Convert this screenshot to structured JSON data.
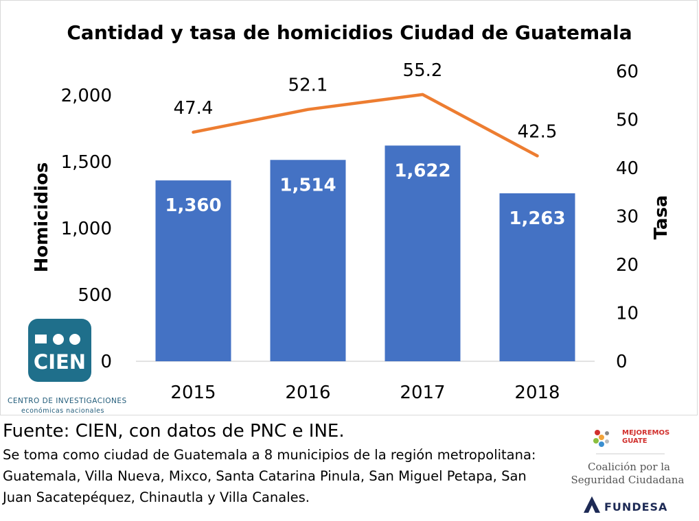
{
  "chart_data": {
    "type": "bar",
    "title": "Cantidad y tasa de homicidios Ciudad de Guatemala",
    "categories": [
      "2015",
      "2016",
      "2017",
      "2018"
    ],
    "series": [
      {
        "name": "Homicidios",
        "kind": "bar",
        "axis": "left",
        "color": "#4472c4",
        "values": [
          1360,
          1514,
          1622,
          1263
        ],
        "labels": [
          "1,360",
          "1,514",
          "1,622",
          "1,263"
        ]
      },
      {
        "name": "Tasa",
        "kind": "line",
        "axis": "right",
        "color": "#ed7d31",
        "values": [
          47.4,
          52.1,
          55.2,
          42.5
        ],
        "labels": [
          "47.4",
          "52.1",
          "55.2",
          "42.5"
        ]
      }
    ],
    "ylabel": "Homicidios",
    "y2label": "Tasa",
    "ylim": [
      0,
      2000
    ],
    "y2lim": [
      0,
      60
    ],
    "yticks": [
      "0",
      "500",
      "1,000",
      "1,500",
      "2,000"
    ],
    "yticks_values": [
      0,
      500,
      1000,
      1500,
      2000
    ],
    "y2ticks": [
      "0",
      "10",
      "20",
      "30",
      "40",
      "50",
      "60"
    ],
    "y2ticks_values": [
      0,
      10,
      20,
      30,
      40,
      50,
      60
    ],
    "grid": false,
    "legend": "none"
  },
  "logos": {
    "cien_mark": "CIEN",
    "cien_caption": "CENTRO DE INVESTIGACIONES",
    "cien_sub": "económicas nacionales",
    "mejoremos_line1": "MEJOREMOS",
    "mejoremos_line2": "GUATE",
    "coalicion_line1": "Coalición por la",
    "coalicion_line2": "Seguridad Ciudadana",
    "fundesa": "FUNDESA"
  },
  "footer": {
    "source": "Fuente: CIEN, con datos de PNC e INE.",
    "note": "Se toma como ciudad de Guatemala a 8 municipios de la región metropolitana: Guatemala, Villa Nueva, Mixco, Santa Catarina Pinula, San Miguel Petapa, San Juan Sacatepéquez, Chinautla y Villa Canales."
  },
  "colors": {
    "bar": "#4472c4",
    "line": "#ed7d31",
    "cien": "#1f6f8b"
  }
}
